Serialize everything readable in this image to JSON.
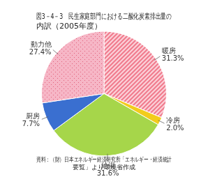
{
  "chart_data": {
    "type": "pie",
    "title": [
      "図3－4－3　民生家庭部門における二酸化炭素排出量の",
      "内訳（2005年度）"
    ],
    "source": [
      "資料：（財）日本エネルギー経済研究所「エネルギー・経済統計",
      "要覧」より環境省作成"
    ],
    "categories": [
      "暖房",
      "冷房",
      "給湯",
      "厨房",
      "動力他"
    ],
    "values": [
      31.3,
      2.0,
      31.6,
      7.7,
      27.4
    ],
    "value_labels": [
      "31.3%",
      "2.0%",
      "31.6%",
      "7.7%",
      "27.4%"
    ],
    "colors": [
      "#f07a8c",
      "#f2cc1c",
      "#a6d64a",
      "#3a6fd0",
      "#f6b6c6"
    ],
    "data_labels": true
  }
}
